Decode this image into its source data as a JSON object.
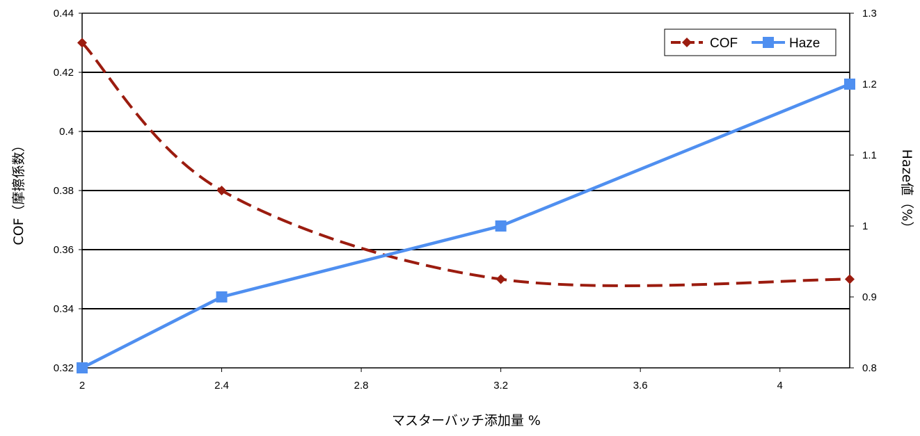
{
  "chart_data": {
    "type": "line",
    "xlabel": "マスターバッチ添加量 %",
    "ylabel": "COF（摩擦係数）",
    "y2label": "Haze値（%）",
    "xlim": [
      2,
      4.2
    ],
    "ylim": [
      0.32,
      0.44
    ],
    "y2lim": [
      0.8,
      1.3
    ],
    "x_ticks": [
      "2",
      "2.4",
      "2.8",
      "3.2",
      "3.6",
      "4"
    ],
    "y_ticks": [
      "0.32",
      "0.34",
      "0.36",
      "0.38",
      "0.4",
      "0.42",
      "0.44"
    ],
    "y2_ticks": [
      "0.8",
      "0.9",
      "1",
      "1.1",
      "1.2",
      "1.3"
    ],
    "grid": true,
    "legend_position": "top-right",
    "series": [
      {
        "name": "COF",
        "axis": "left",
        "style": "dashed",
        "marker": "diamond",
        "color": "#9b1c0f",
        "x": [
          2,
          2.4,
          3.2,
          4.2
        ],
        "y": [
          0.43,
          0.38,
          0.35,
          0.35
        ]
      },
      {
        "name": "Haze",
        "axis": "right",
        "style": "solid",
        "marker": "square",
        "color": "#4f8ff0",
        "x": [
          2,
          2.4,
          3.2,
          4.2
        ],
        "y": [
          0.8,
          0.9,
          1.0,
          1.2
        ]
      }
    ]
  }
}
